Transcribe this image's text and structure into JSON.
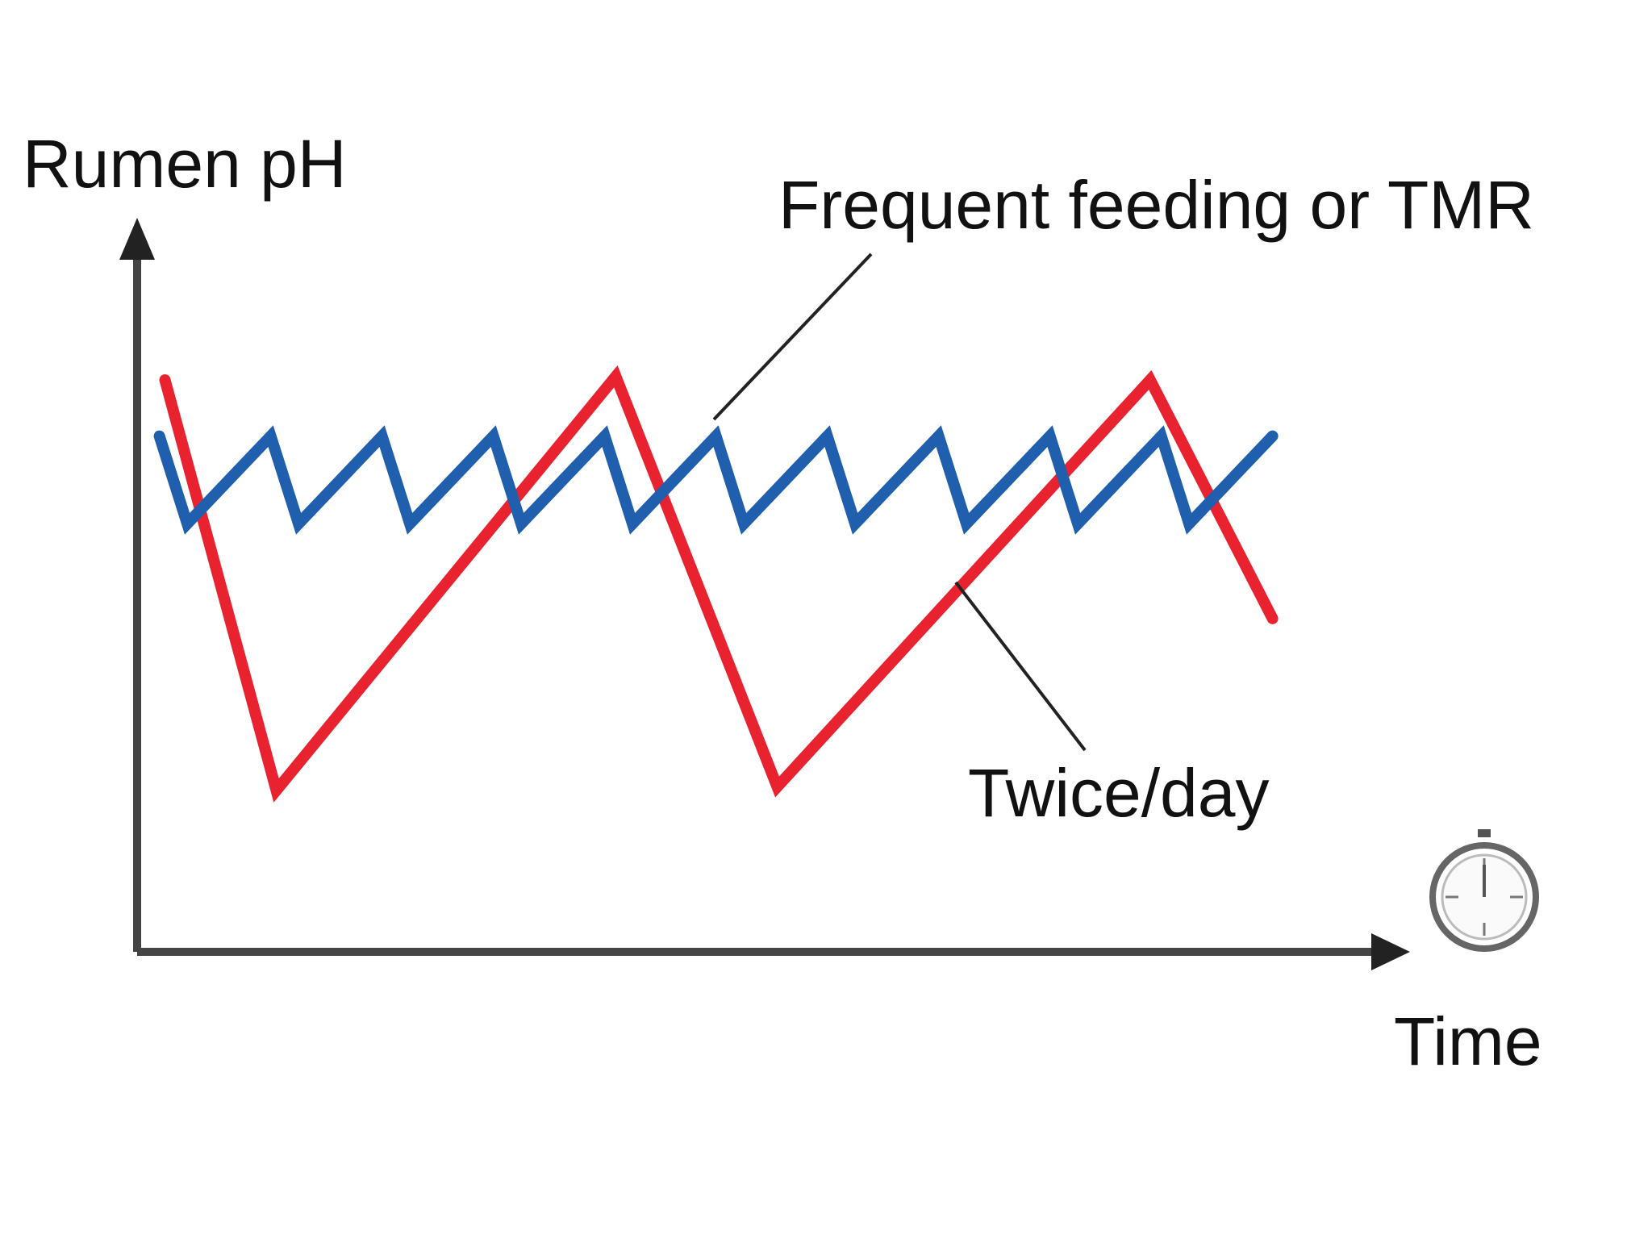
{
  "chart_data": {
    "type": "line",
    "title": "",
    "ylabel": "Rumen pH",
    "xlabel": "Time",
    "xlim": [
      0,
      100
    ],
    "ylim": [
      0,
      100
    ],
    "grid": false,
    "legend": "none",
    "annotations": [
      {
        "name": "annotation-frequent",
        "text": "Frequent feeding or TMR",
        "series": "Frequent feeding or TMR"
      },
      {
        "name": "annotation-twice",
        "text": "Twice/day",
        "series": "Twice/day"
      }
    ],
    "series": [
      {
        "name": "Frequent feeding or TMR",
        "color": "#1f5fae",
        "x": [
          2,
          4.5,
          12,
          14.5,
          22,
          24.5,
          32,
          34.5,
          42,
          44.5,
          52,
          54.5,
          62,
          64.5,
          72,
          74.5,
          82,
          84.5,
          92,
          94.5,
          102
        ],
        "y": [
          73.5,
          61,
          73.5,
          61,
          73.5,
          61,
          73.5,
          61,
          73.5,
          61,
          73.5,
          61,
          73.5,
          61,
          73.5,
          61,
          73.5,
          61,
          73.5,
          61,
          73.5
        ]
      },
      {
        "name": "Twice/day",
        "color": "#e8232f",
        "x": [
          2.5,
          12.5,
          43,
          57.5,
          91,
          102
        ],
        "y": [
          81.5,
          23,
          82,
          23.5,
          81.5,
          47.5
        ]
      }
    ]
  },
  "icons": {
    "stopwatch": "stopwatch-icon"
  }
}
